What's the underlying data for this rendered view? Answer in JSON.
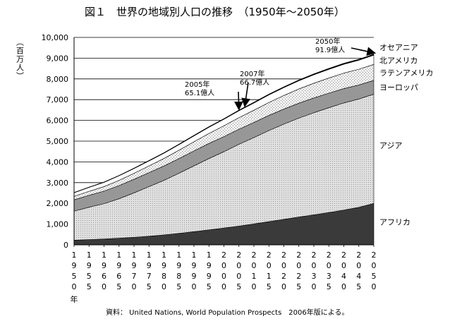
{
  "title": "図１　世界の地域別人口の推移　（1950年～2050年）",
  "source_note": "資料： United Nations, World Population Prospects　2006年版による。",
  "chart_data": {
    "type": "area",
    "stacked": true,
    "ylabel": "（百万人）",
    "ylim": [
      0,
      10000
    ],
    "yticks": [
      "0",
      "1,000",
      "2,000",
      "3,000",
      "4,000",
      "5,000",
      "6,000",
      "7,000",
      "8,000",
      "9,000",
      "10,000"
    ],
    "x": [
      1950,
      1955,
      1960,
      1965,
      1970,
      1975,
      1980,
      1985,
      1990,
      1995,
      2000,
      2005,
      2010,
      2015,
      2020,
      2025,
      2030,
      2035,
      2040,
      2045,
      2050
    ],
    "x_unit_label": "年",
    "grid": "horizontal",
    "series": [
      {
        "name": "アフリカ",
        "fill": "#383838",
        "values": [
          224,
          254,
          285,
          322,
          366,
          416,
          480,
          553,
          637,
          720,
          811,
          906,
          1010,
          1120,
          1230,
          1340,
          1450,
          1560,
          1680,
          1810,
          1998
        ]
      },
      {
        "name": "アジア",
        "fill": "#d9d9d9",
        "values": [
          1400,
          1560,
          1700,
          1900,
          2140,
          2390,
          2630,
          2900,
          3170,
          3440,
          3680,
          3940,
          4160,
          4390,
          4590,
          4770,
          4920,
          5050,
          5160,
          5220,
          5266
        ]
      },
      {
        "name": "ヨーロッパ",
        "fill": "#a8a8a8",
        "values": [
          547,
          576,
          604,
          634,
          656,
          676,
          693,
          706,
          721,
          727,
          727,
          728,
          730,
          729,
          726,
          720,
          712,
          703,
          693,
          675,
          664
        ]
      },
      {
        "name": "ラテンアメリカ",
        "fill": "#ebebeb",
        "values": [
          167,
          191,
          220,
          253,
          285,
          322,
          362,
          403,
          442,
          482,
          521,
          556,
          590,
          624,
          655,
          685,
          710,
          730,
          746,
          760,
          769
        ]
      },
      {
        "name": "北アメリカ",
        "fill": "#ffffff",
        "values": [
          172,
          187,
          204,
          219,
          231,
          242,
          254,
          267,
          282,
          299,
          315,
          332,
          348,
          364,
          379,
          394,
          406,
          417,
          427,
          437,
          445
        ]
      },
      {
        "name": "オセアニア",
        "fill": "#000000",
        "values": [
          13,
          14,
          16,
          18,
          20,
          21,
          23,
          25,
          27,
          29,
          31,
          33,
          36,
          38,
          40,
          42,
          44,
          45,
          47,
          48,
          49
        ]
      }
    ],
    "annotations": [
      {
        "year": "2005年",
        "value": "65.1億人",
        "x": 2005,
        "y": 6515
      },
      {
        "year": "2007年",
        "value": "66.7億人",
        "x": 2007,
        "y": 6670
      },
      {
        "year": "2050年",
        "value": "91.9億人",
        "x": 2050,
        "y": 9190
      }
    ]
  }
}
